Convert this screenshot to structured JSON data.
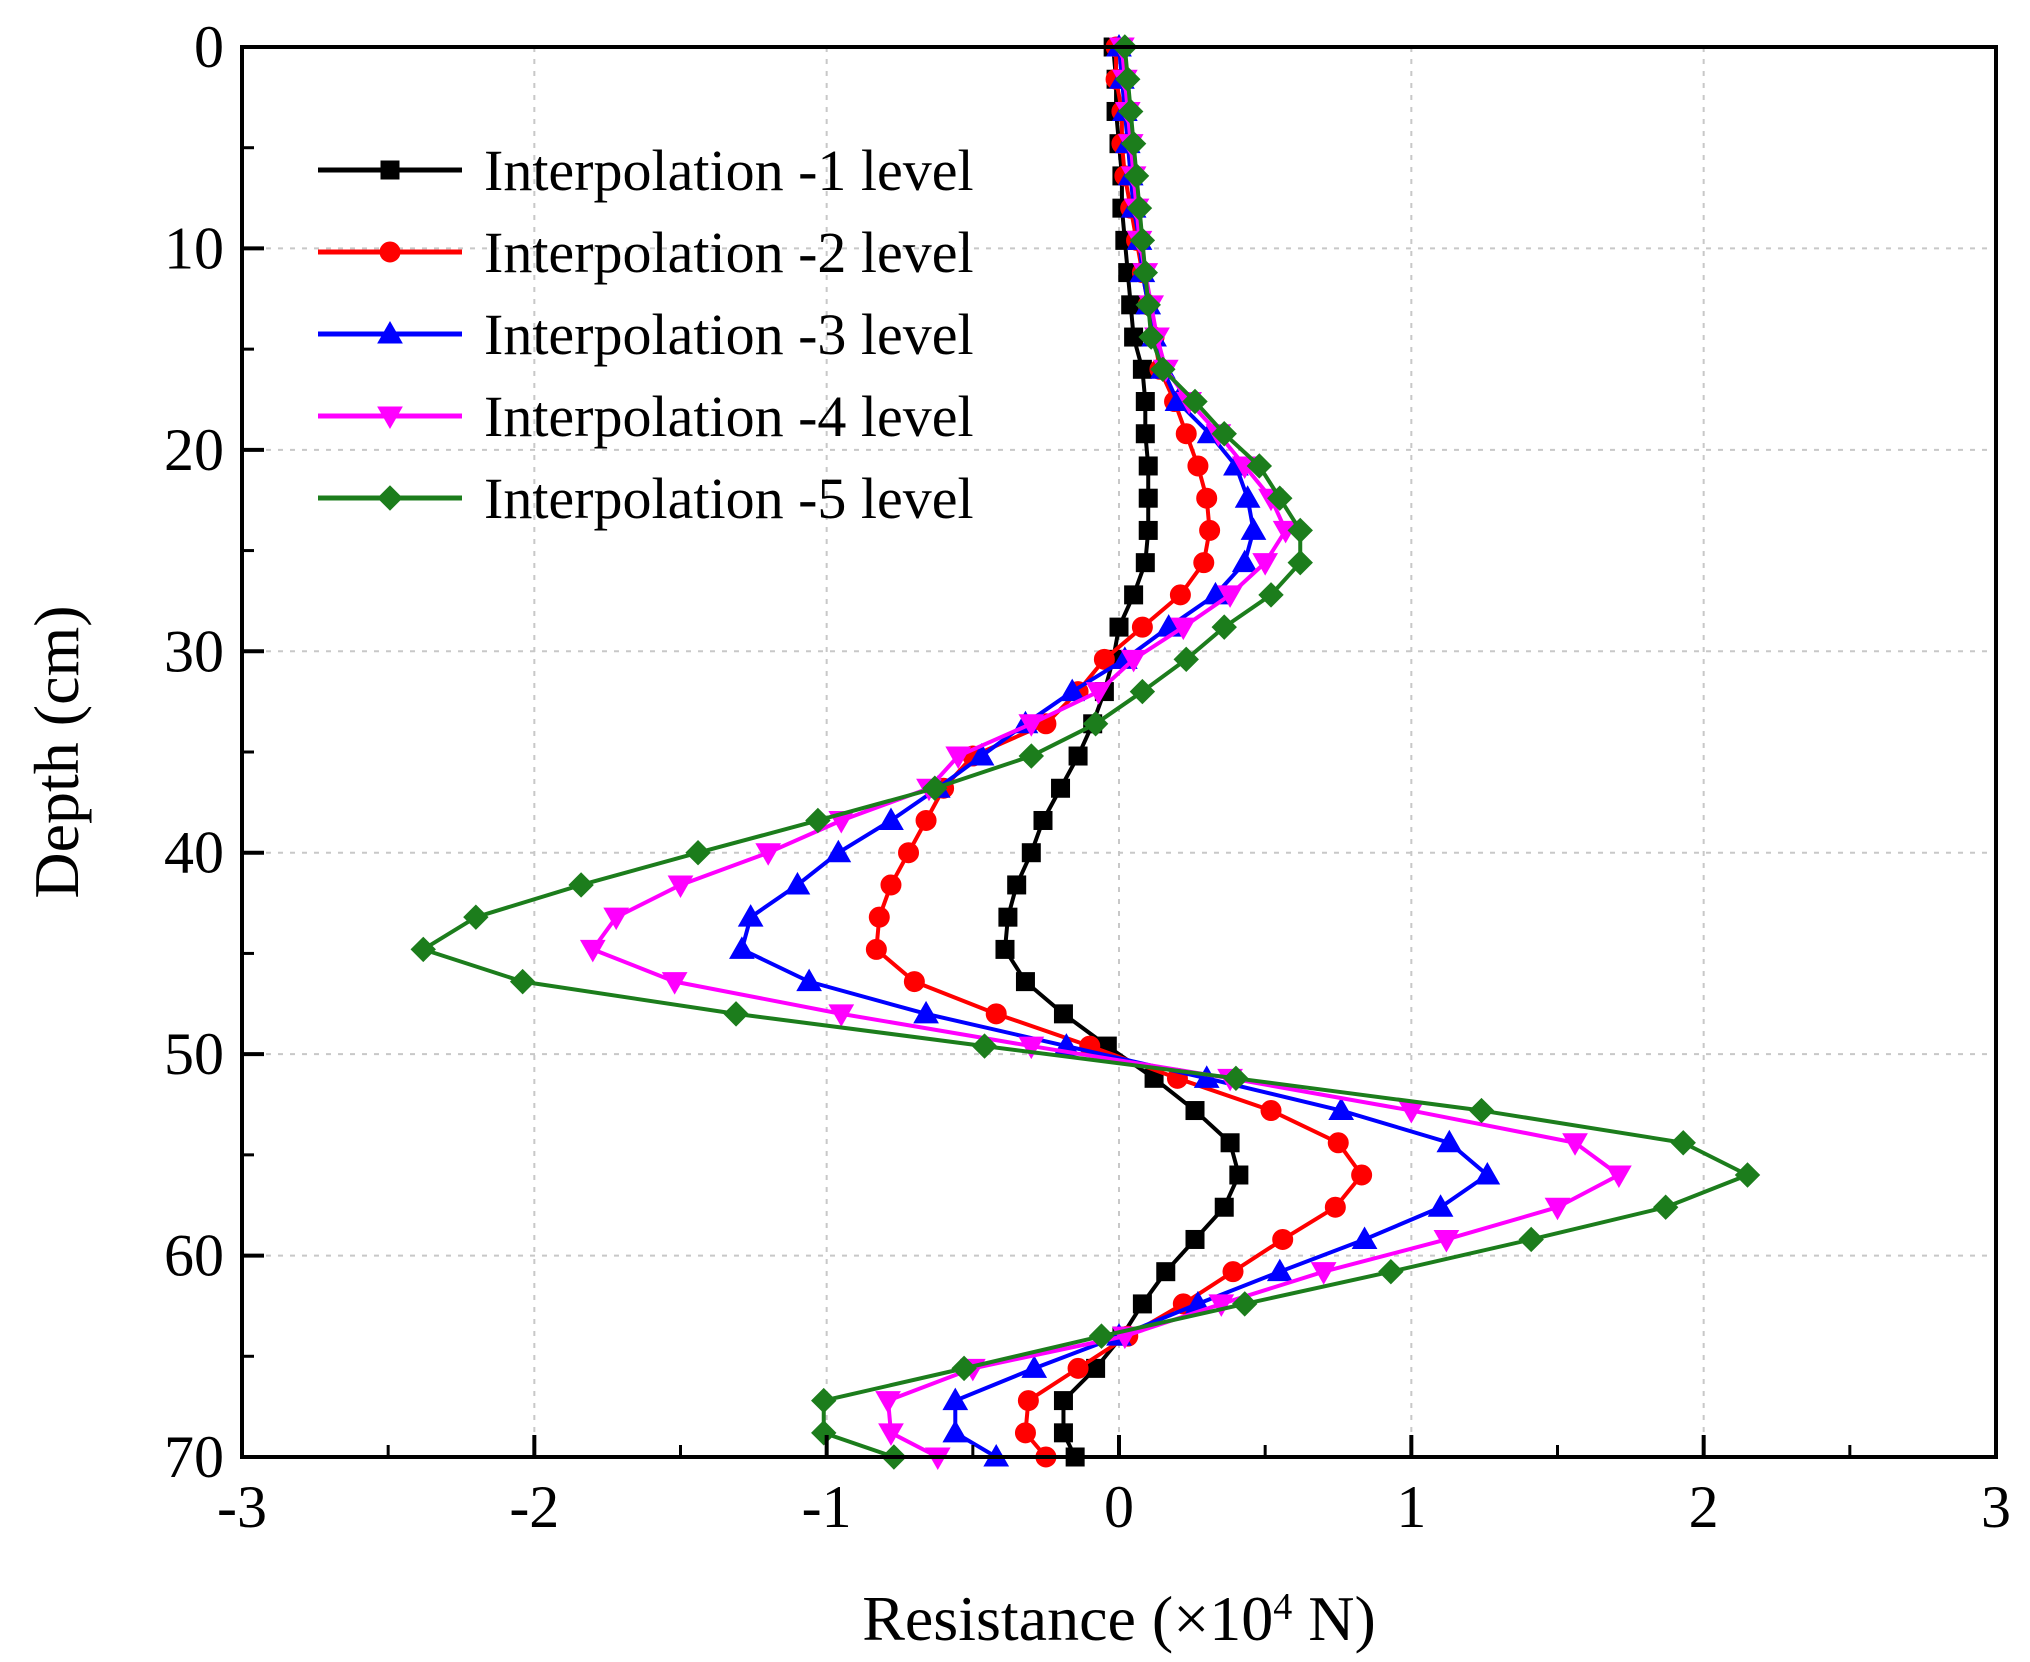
{
  "chart_data": {
    "type": "line",
    "title": "",
    "xlabel": {
      "prefix": "Resistance (×10",
      "sup": "4",
      "suffix": " N)"
    },
    "ylabel": "Depth (cm)",
    "xlim": [
      -3,
      3
    ],
    "ylim": [
      0,
      70
    ],
    "y_inverted": true,
    "x_ticks": [
      "-3",
      "-2",
      "-1",
      "0",
      "1",
      "2",
      "3"
    ],
    "y_ticks": [
      "0",
      "10",
      "20",
      "30",
      "40",
      "50",
      "60",
      "70"
    ],
    "grid": true,
    "legend_position": "top-left",
    "depth": [
      0,
      1.6,
      3.2,
      4.8,
      6.4,
      8.0,
      9.6,
      11.2,
      12.8,
      14.4,
      16.0,
      17.6,
      19.2,
      20.8,
      22.4,
      24.0,
      25.6,
      27.2,
      28.8,
      30.4,
      32.0,
      33.6,
      35.2,
      36.8,
      38.4,
      40.0,
      41.6,
      43.2,
      44.8,
      46.4,
      48.0,
      49.6,
      51.2,
      52.8,
      54.4,
      56.0,
      57.6,
      59.2,
      60.8,
      62.4,
      64.0,
      65.6,
      67.2,
      68.8,
      70.0
    ],
    "series": [
      {
        "name": "Interpolation -1 level",
        "color": "#000000",
        "marker": "square",
        "values": [
          -0.02,
          -0.01,
          -0.01,
          0.0,
          0.01,
          0.01,
          0.02,
          0.03,
          0.04,
          0.05,
          0.08,
          0.09,
          0.09,
          0.1,
          0.1,
          0.1,
          0.09,
          0.05,
          0.0,
          -0.02,
          -0.05,
          -0.09,
          -0.14,
          -0.2,
          -0.26,
          -0.3,
          -0.35,
          -0.38,
          -0.39,
          -0.32,
          -0.19,
          -0.04,
          0.12,
          0.26,
          0.38,
          0.41,
          0.36,
          0.26,
          0.16,
          0.08,
          0.01,
          -0.08,
          -0.19,
          -0.19,
          -0.15
        ]
      },
      {
        "name": "Interpolation -2 level",
        "color": "#ff0000",
        "marker": "circle",
        "values": [
          -0.01,
          -0.01,
          0.01,
          0.01,
          0.02,
          0.04,
          0.06,
          0.08,
          0.1,
          0.12,
          0.14,
          0.19,
          0.23,
          0.27,
          0.3,
          0.31,
          0.29,
          0.21,
          0.08,
          -0.05,
          -0.14,
          -0.25,
          -0.5,
          -0.6,
          -0.66,
          -0.72,
          -0.78,
          -0.82,
          -0.83,
          -0.7,
          -0.42,
          -0.1,
          0.2,
          0.52,
          0.75,
          0.83,
          0.74,
          0.56,
          0.39,
          0.22,
          0.03,
          -0.14,
          -0.31,
          -0.32,
          -0.25
        ]
      },
      {
        "name": "Interpolation -3 level",
        "color": "#0000ff",
        "marker": "triangle-up",
        "values": [
          0.0,
          0.01,
          0.02,
          0.03,
          0.04,
          0.05,
          0.07,
          0.08,
          0.1,
          0.12,
          0.15,
          0.2,
          0.31,
          0.4,
          0.44,
          0.46,
          0.43,
          0.33,
          0.17,
          0.02,
          -0.16,
          -0.32,
          -0.47,
          -0.62,
          -0.78,
          -0.96,
          -1.1,
          -1.26,
          -1.29,
          -1.06,
          -0.66,
          -0.18,
          0.3,
          0.76,
          1.13,
          1.26,
          1.1,
          0.84,
          0.55,
          0.27,
          0.0,
          -0.29,
          -0.56,
          -0.56,
          -0.42
        ]
      },
      {
        "name": "Interpolation -4 level",
        "color": "#ff00ff",
        "marker": "triangle-down",
        "values": [
          0.01,
          0.02,
          0.03,
          0.04,
          0.05,
          0.06,
          0.07,
          0.09,
          0.11,
          0.13,
          0.16,
          0.24,
          0.34,
          0.43,
          0.52,
          0.57,
          0.5,
          0.38,
          0.22,
          0.05,
          -0.07,
          -0.3,
          -0.55,
          -0.65,
          -0.95,
          -1.2,
          -1.5,
          -1.72,
          -1.8,
          -1.52,
          -0.95,
          -0.3,
          0.38,
          1.0,
          1.56,
          1.71,
          1.5,
          1.12,
          0.7,
          0.35,
          0.02,
          -0.5,
          -0.79,
          -0.78,
          -0.62
        ]
      },
      {
        "name": "Interpolation -5 level",
        "color": "#1c7d1c",
        "marker": "diamond",
        "values": [
          0.02,
          0.03,
          0.04,
          0.05,
          0.06,
          0.07,
          0.08,
          0.09,
          0.1,
          0.11,
          0.15,
          0.26,
          0.36,
          0.48,
          0.55,
          0.62,
          0.62,
          0.52,
          0.36,
          0.23,
          0.08,
          -0.08,
          -0.3,
          -0.63,
          -1.03,
          -1.44,
          -1.84,
          -2.2,
          -2.38,
          -2.04,
          -1.31,
          -0.46,
          0.4,
          1.24,
          1.93,
          2.15,
          1.87,
          1.41,
          0.93,
          0.43,
          -0.06,
          -0.53,
          -1.01,
          -1.01,
          -0.77
        ]
      }
    ]
  }
}
